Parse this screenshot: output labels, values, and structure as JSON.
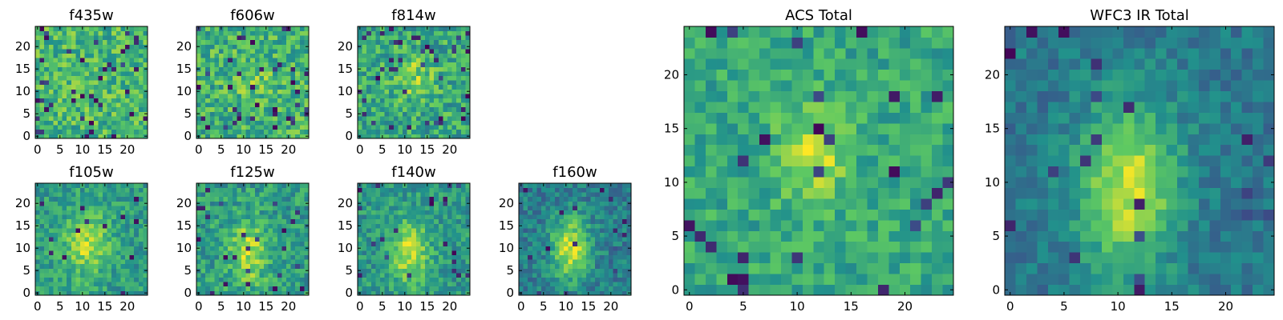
{
  "figure": {
    "background": "#ffffff"
  },
  "colormap": {
    "name": "viridis",
    "stops": [
      "#440154",
      "#3b528b",
      "#21918c",
      "#5ec962",
      "#fde725"
    ]
  },
  "chart_data": [
    {
      "id": "f435w",
      "type": "heatmap",
      "title": "f435w",
      "grid_size": 25,
      "xlim": [
        0,
        24
      ],
      "ylim": [
        0,
        24
      ],
      "xticks": [
        0,
        5,
        10,
        15,
        20
      ],
      "yticks": [
        0,
        5,
        10,
        15,
        20
      ],
      "value_range": [
        0,
        1
      ],
      "model": {
        "base": 0.66,
        "noise": 0.2,
        "peak": 0.03,
        "cx": 11,
        "cy": 11,
        "sx": 3,
        "sy": 3,
        "dark_frac": 0.06,
        "seed": 11
      }
    },
    {
      "id": "f606w",
      "type": "heatmap",
      "title": "f606w",
      "grid_size": 25,
      "xlim": [
        0,
        24
      ],
      "ylim": [
        0,
        24
      ],
      "xticks": [
        0,
        5,
        10,
        15,
        20
      ],
      "yticks": [
        0,
        5,
        10,
        15,
        20
      ],
      "value_range": [
        0,
        1
      ],
      "model": {
        "base": 0.64,
        "noise": 0.2,
        "peak": 0.13,
        "cx": 12,
        "cy": 13,
        "sx": 3,
        "sy": 3,
        "dark_frac": 0.05,
        "seed": 22
      }
    },
    {
      "id": "f814w",
      "type": "heatmap",
      "title": "f814w",
      "grid_size": 25,
      "xlim": [
        0,
        24
      ],
      "ylim": [
        0,
        24
      ],
      "xticks": [
        0,
        5,
        10,
        15,
        20
      ],
      "yticks": [
        0,
        5,
        10,
        15,
        20
      ],
      "value_range": [
        0,
        1
      ],
      "model": {
        "base": 0.6,
        "noise": 0.2,
        "peak": 0.22,
        "cx": 12,
        "cy": 13,
        "sx": 3,
        "sy": 3.5,
        "dark_frac": 0.05,
        "seed": 33
      }
    },
    {
      "id": "f105w",
      "type": "heatmap",
      "title": "f105w",
      "grid_size": 25,
      "xlim": [
        0,
        24
      ],
      "ylim": [
        0,
        24
      ],
      "xticks": [
        0,
        5,
        10,
        15,
        20
      ],
      "yticks": [
        0,
        5,
        10,
        15,
        20
      ],
      "value_range": [
        0,
        1
      ],
      "model": {
        "base": 0.55,
        "noise": 0.15,
        "peak": 0.33,
        "cx": 11,
        "cy": 11,
        "sx": 3.5,
        "sy": 5,
        "dark_frac": 0.02,
        "seed": 44
      }
    },
    {
      "id": "f125w",
      "type": "heatmap",
      "title": "f125w",
      "grid_size": 25,
      "xlim": [
        0,
        24
      ],
      "ylim": [
        0,
        24
      ],
      "xticks": [
        0,
        5,
        10,
        15,
        20
      ],
      "yticks": [
        0,
        5,
        10,
        15,
        20
      ],
      "value_range": [
        0,
        1
      ],
      "model": {
        "base": 0.55,
        "noise": 0.17,
        "peak": 0.33,
        "cx": 11,
        "cy": 9,
        "sx": 3.2,
        "sy": 5,
        "dark_frac": 0.04,
        "seed": 55
      }
    },
    {
      "id": "f140w",
      "type": "heatmap",
      "title": "f140w",
      "grid_size": 25,
      "xlim": [
        0,
        24
      ],
      "ylim": [
        0,
        24
      ],
      "xticks": [
        0,
        5,
        10,
        15,
        20
      ],
      "yticks": [
        0,
        5,
        10,
        15,
        20
      ],
      "value_range": [
        0,
        1
      ],
      "model": {
        "base": 0.53,
        "noise": 0.15,
        "peak": 0.38,
        "cx": 11,
        "cy": 9,
        "sx": 3,
        "sy": 5,
        "dark_frac": 0.03,
        "seed": 66
      }
    },
    {
      "id": "f160w",
      "type": "heatmap",
      "title": "f160w",
      "grid_size": 25,
      "xlim": [
        0,
        24
      ],
      "ylim": [
        0,
        24
      ],
      "xticks": [
        0,
        5,
        10,
        15,
        20
      ],
      "yticks": [
        0,
        5,
        10,
        15,
        20
      ],
      "value_range": [
        0,
        1
      ],
      "model": {
        "base": 0.42,
        "noise": 0.14,
        "peak": 0.5,
        "cx": 11,
        "cy": 10,
        "sx": 3,
        "sy": 5,
        "dark_frac": 0.02,
        "seed": 77
      }
    },
    {
      "id": "acs-total",
      "type": "heatmap",
      "title": "ACS Total",
      "grid_size": 25,
      "xlim": [
        0,
        24
      ],
      "ylim": [
        0,
        24
      ],
      "xticks": [
        0,
        5,
        10,
        15,
        20
      ],
      "yticks": [
        0,
        5,
        10,
        15,
        20
      ],
      "value_range": [
        0,
        1
      ],
      "model": {
        "base": 0.6,
        "noise": 0.14,
        "peak": 0.33,
        "cx": 11.5,
        "cy": 12.5,
        "sx": 2.2,
        "sy": 3,
        "dark_frac": 0.04,
        "seed": 88
      }
    },
    {
      "id": "wfc3-ir-total",
      "type": "heatmap",
      "title": "WFC3 IR Total",
      "grid_size": 25,
      "xlim": [
        0,
        24
      ],
      "ylim": [
        0,
        24
      ],
      "xticks": [
        0,
        5,
        10,
        15,
        20
      ],
      "yticks": [
        0,
        5,
        10,
        15,
        20
      ],
      "value_range": [
        0,
        1
      ],
      "model": {
        "base": 0.4,
        "noise": 0.11,
        "peak": 0.52,
        "cx": 11,
        "cy": 9.5,
        "sx": 3.2,
        "sy": 5.5,
        "dark_frac": 0.03,
        "seed": 99
      }
    }
  ]
}
